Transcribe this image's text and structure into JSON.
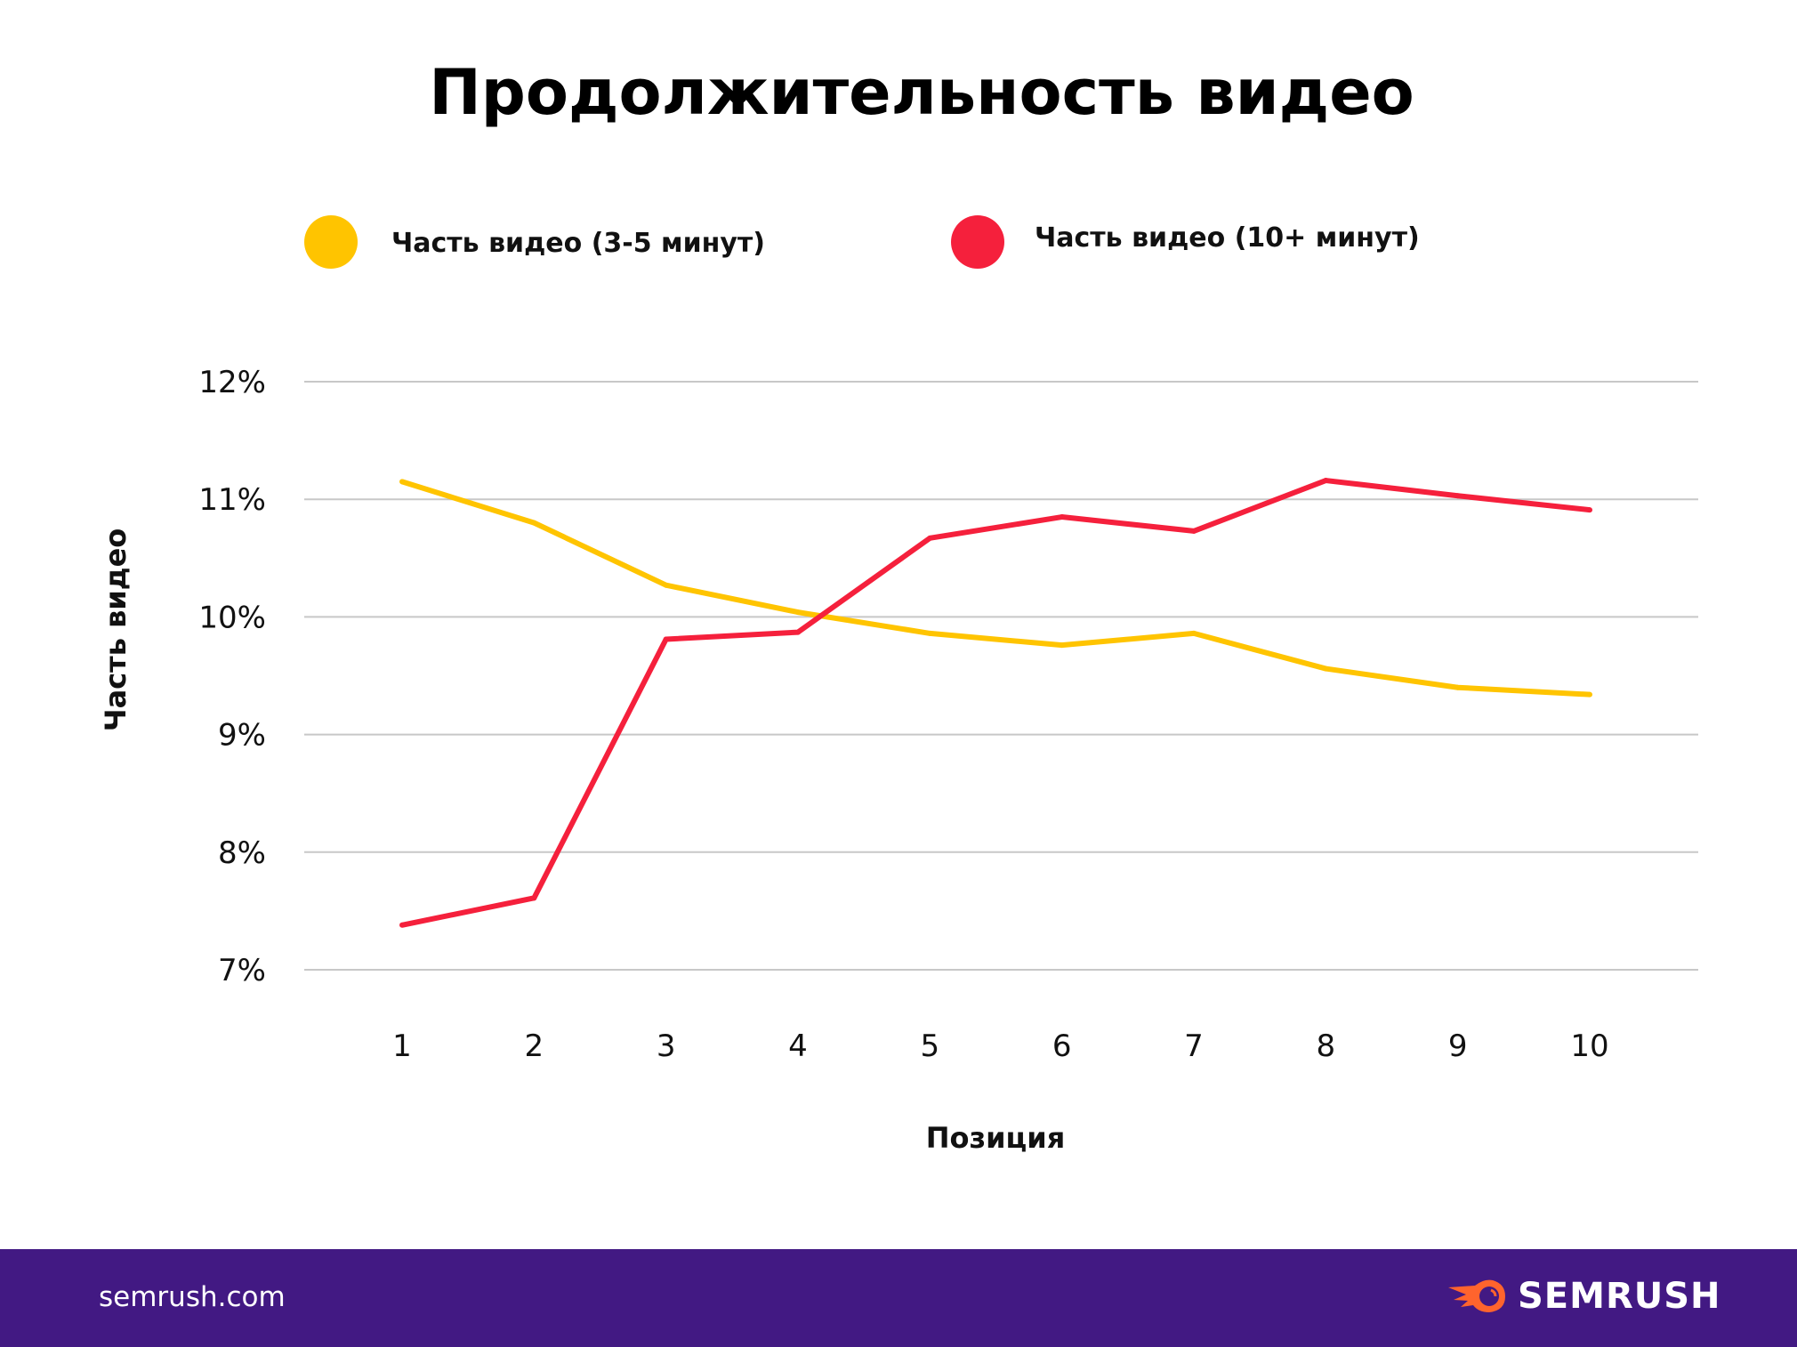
{
  "chart_data": {
    "type": "line",
    "title": "Продолжительность видео",
    "xlabel": "Позиция",
    "ylabel": "Часть видео",
    "categories": [
      "1",
      "2",
      "3",
      "4",
      "5",
      "6",
      "7",
      "8",
      "9",
      "10"
    ],
    "y_ticks": [
      "12%",
      "11%",
      "10%",
      "9%",
      "8%",
      "7%"
    ],
    "ylim": [
      7,
      12
    ],
    "grid": true,
    "legend_position": "top",
    "series": [
      {
        "name": "Часть видео (3-5 минут)",
        "color": "#FFC400",
        "values": [
          11.15,
          10.8,
          10.27,
          10.04,
          9.86,
          9.76,
          9.86,
          9.56,
          9.4,
          9.34
        ]
      },
      {
        "name": "Часть видео (10+ минут)",
        "color": "#F5203C",
        "values": [
          7.38,
          7.61,
          9.81,
          9.87,
          10.67,
          10.85,
          10.73,
          11.16,
          11.03,
          10.91
        ]
      }
    ]
  },
  "footer": {
    "site": "semrush.com",
    "brand": "SEMRUSH",
    "background": "#421983",
    "logo_color": "#FF642D"
  }
}
